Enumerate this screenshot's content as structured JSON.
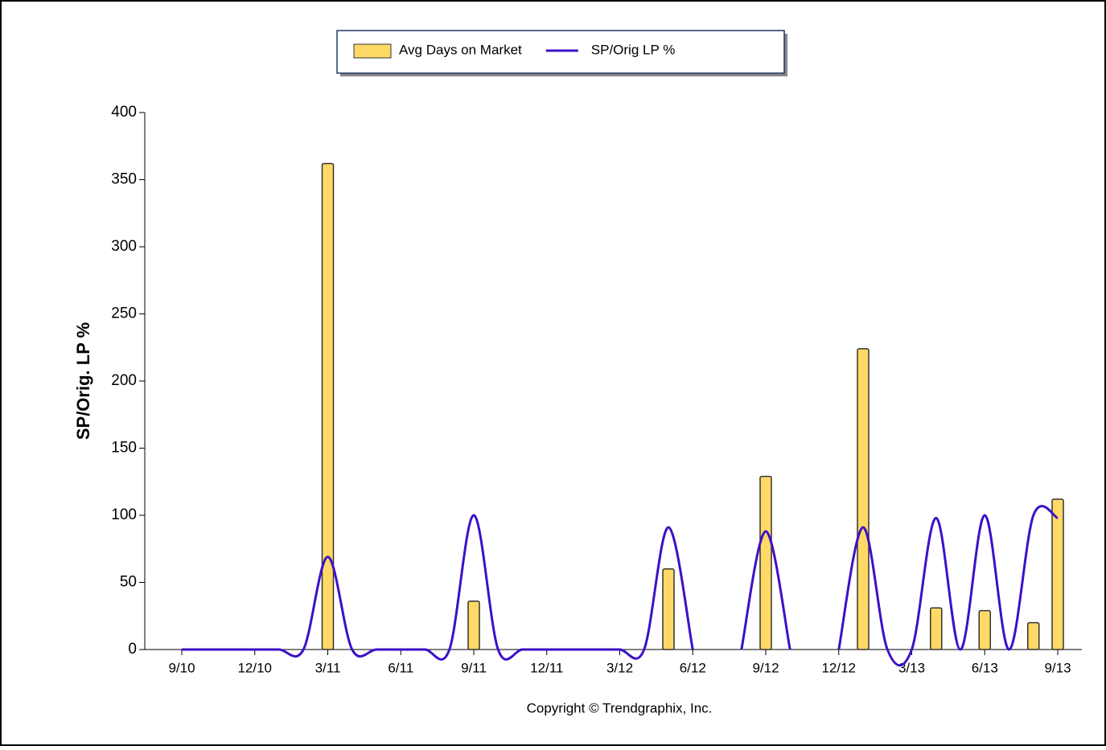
{
  "chart_data": {
    "type": "bar_line",
    "y_label": "SP/Orig. LP %",
    "footer": "Copyright © Trendgraphix, Inc.",
    "categories": [
      "9/10",
      null,
      null,
      "12/10",
      null,
      null,
      "3/11",
      null,
      null,
      "6/11",
      null,
      null,
      "9/11",
      null,
      null,
      "12/11",
      null,
      null,
      "3/12",
      null,
      null,
      "6/12",
      null,
      null,
      "9/12",
      null,
      null,
      "12/12",
      null,
      null,
      "3/13",
      null,
      null,
      "6/13",
      null,
      null,
      "9/13"
    ],
    "ylim": [
      0,
      400
    ],
    "yticks": [
      0,
      50,
      100,
      150,
      200,
      250,
      300,
      350,
      400
    ],
    "legend": "top",
    "series": [
      {
        "name": "Avg Days on Market",
        "type": "bar",
        "color": "#ffd966",
        "values": [
          0,
          0,
          0,
          0,
          0,
          0,
          362,
          0,
          0,
          0,
          0,
          0,
          36,
          0,
          0,
          0,
          0,
          0,
          0,
          0,
          60,
          0,
          0,
          0,
          129,
          0,
          0,
          0,
          224,
          0,
          0,
          31,
          0,
          29,
          0,
          20,
          112
        ]
      },
      {
        "name": "SP/Orig LP %",
        "type": "line",
        "color": "#3c10c8",
        "values": [
          0,
          0,
          0,
          0,
          0,
          0,
          69,
          0,
          0,
          0,
          0,
          0,
          100,
          0,
          0,
          0,
          0,
          0,
          0,
          0,
          91,
          0,
          null,
          0,
          88,
          0,
          null,
          0,
          91,
          0,
          0,
          98,
          0,
          100,
          0,
          100,
          98
        ]
      }
    ]
  }
}
